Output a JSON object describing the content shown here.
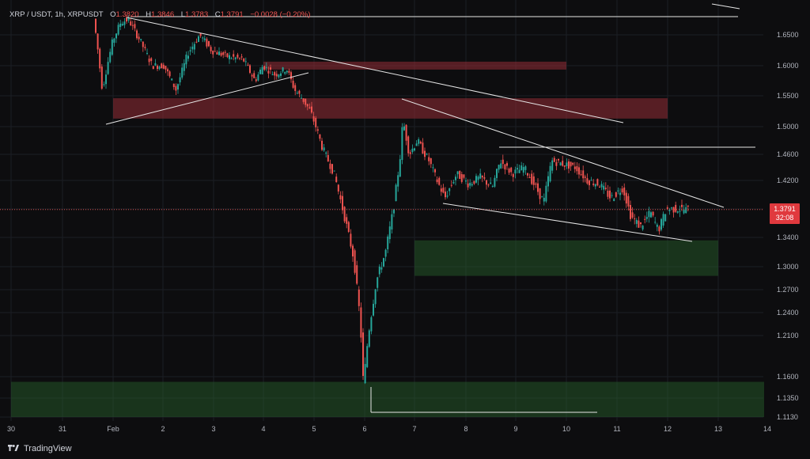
{
  "header": {
    "symbol": "XRP / USDT, 1h, XRPUSDT",
    "open_label": "O",
    "open": "1.3820",
    "high_label": "H",
    "high": "1.3846",
    "low_label": "L",
    "low": "1.3783",
    "close_label": "C",
    "close": "1.3791",
    "change": "−0.0028 (−0.20%)"
  },
  "price_tag": {
    "price": "1.3791",
    "countdown": "32:08"
  },
  "brand": {
    "name": "TradingView"
  },
  "colors": {
    "up": "#26a69a",
    "down": "#ef5350",
    "bg": "#0d0d0f",
    "lines": "#e6e6e6",
    "resistance": "#8a2e34",
    "support": "#1f4a26"
  },
  "chart_data": {
    "type": "candlestick",
    "y_ticks": [
      "1.6500",
      "1.6000",
      "1.5500",
      "1.5000",
      "1.4600",
      "1.4200",
      "1.3800",
      "1.3400",
      "1.3000",
      "1.2700",
      "1.2400",
      "1.2100",
      "1.1600",
      "1.1350",
      "1.1130"
    ],
    "x_ticks": [
      "30",
      "31",
      "Feb",
      "2",
      "3",
      "4",
      "5",
      "6",
      "7",
      "8",
      "9",
      "10",
      "11",
      "12",
      "13",
      "14"
    ],
    "current_price": 1.3791,
    "zones": [
      {
        "kind": "resistance",
        "y_top": 1.6065,
        "y_bottom": 1.5935,
        "x_start": "4",
        "x_end": "10"
      },
      {
        "kind": "resistance",
        "y_top": 1.546,
        "y_bottom": 1.513,
        "x_start": "Feb",
        "x_end": "12"
      },
      {
        "kind": "support",
        "y_top": 1.336,
        "y_bottom": 1.288,
        "x_start": "7",
        "x_end": "13"
      },
      {
        "kind": "support",
        "y_top": 1.154,
        "y_bottom": 1.113,
        "x_start": "30",
        "x_end": "14"
      }
    ]
  }
}
